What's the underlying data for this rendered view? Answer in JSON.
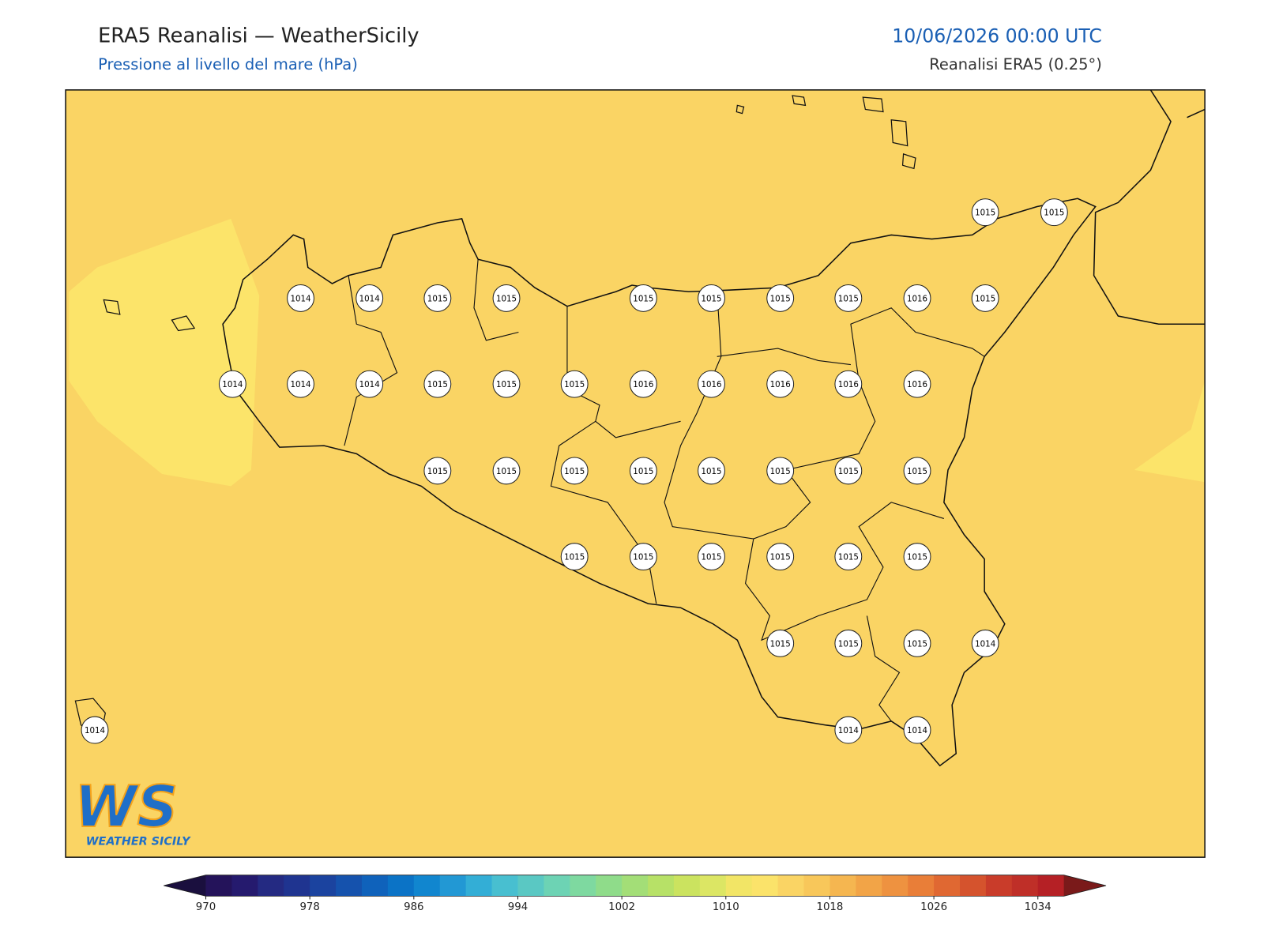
{
  "header": {
    "title": "ERA5 Reanalisi — WeatherSicily",
    "subtitle": "Pressione al livello del mare (hPa)",
    "datetime": "10/06/2026 00:00 UTC",
    "source": "Reanalisi ERA5 (0.25°)"
  },
  "pressure_labels": [
    1015,
    1015,
    1014,
    1014,
    1015,
    1015,
    1015,
    1015,
    1015,
    1015,
    1016,
    1015,
    1014,
    1014,
    1014,
    1015,
    1015,
    1015,
    1016,
    1016,
    1016,
    1016,
    1016,
    1015,
    1015,
    1015,
    1015,
    1015,
    1015,
    1015,
    1015,
    1015,
    1015,
    1015,
    1015,
    1015,
    1015,
    1015,
    1015,
    1015,
    1014,
    1014,
    1014,
    1014
  ],
  "colorbar": {
    "range": [
      970,
      1036
    ],
    "ticks": [
      970,
      978,
      986,
      994,
      1002,
      1010,
      1018,
      1026,
      1034
    ],
    "colors": [
      "#24135a",
      "#251a6e",
      "#242a82",
      "#1f3490",
      "#1b439f",
      "#1552ad",
      "#0f62bb",
      "#0b73c6",
      "#1186cf",
      "#2298d4",
      "#33aed6",
      "#48bfd0",
      "#5ac8c3",
      "#6dd3b4",
      "#7ed9a0",
      "#8fdc8a",
      "#a3de77",
      "#b7e167",
      "#cbe35f",
      "#dce664",
      "#f2e566",
      "#fbe36a",
      "#fad464",
      "#f8c75a",
      "#f5b650",
      "#f2a447",
      "#ee9240",
      "#e97e38",
      "#e06832",
      "#d5532d",
      "#c93c2a",
      "#bf2f28",
      "#b52025"
    ],
    "under_color": "#1a0f3e",
    "over_color": "#7a1a1a"
  },
  "logo": {
    "initials": "WS",
    "name": "WEATHER SICILY"
  }
}
